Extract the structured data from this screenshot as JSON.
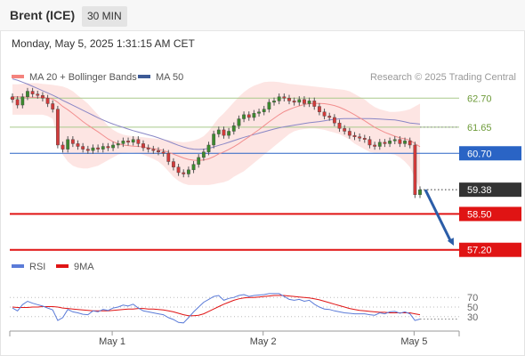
{
  "header": {
    "title": "Brent (ICE)",
    "timeframe": "30 MIN"
  },
  "datetime": "Monday, May 5, 2025 1:31:15 AM CET",
  "chart_data": [
    {
      "type": "candlestick",
      "legend": [
        {
          "name": "MA 20 + Bollinger Bands",
          "color": "#f4837d"
        },
        {
          "name": "MA 50",
          "color": "#3d5a96"
        }
      ],
      "source": "Research © 2025 Trading Central",
      "ylim": [
        56.9,
        64.0
      ],
      "x_labels": [
        {
          "label": "May 1",
          "index": 20
        },
        {
          "label": "May 2",
          "index": 50
        },
        {
          "label": "May 5",
          "index": 80
        }
      ],
      "levels": [
        {
          "value": 62.7,
          "label": "62.70",
          "kind": "resistance-light",
          "color": "#a9c98a"
        },
        {
          "value": 61.65,
          "label": "61.65",
          "kind": "resistance-light",
          "color": "#a9c98a"
        },
        {
          "value": 60.7,
          "label": "60.70",
          "kind": "pivot",
          "color": "#2a64c5"
        },
        {
          "value": 59.38,
          "label": "59.38",
          "kind": "last-price",
          "color": "#333333"
        },
        {
          "value": 58.5,
          "label": "58.50",
          "kind": "support",
          "color": "#e01414"
        },
        {
          "value": 57.2,
          "label": "57.20",
          "kind": "support",
          "color": "#e01414"
        }
      ],
      "close": [
        62.65,
        62.45,
        62.75,
        62.95,
        62.85,
        62.8,
        62.7,
        62.5,
        62.3,
        61.0,
        60.85,
        61.2,
        61.05,
        60.95,
        60.85,
        60.8,
        60.9,
        60.85,
        60.95,
        60.9,
        61.0,
        61.05,
        61.15,
        61.1,
        61.2,
        61.05,
        60.9,
        60.85,
        60.8,
        60.75,
        60.7,
        60.4,
        60.2,
        60.0,
        59.95,
        60.1,
        60.3,
        60.55,
        60.75,
        61.0,
        61.4,
        61.55,
        61.35,
        61.5,
        61.7,
        61.95,
        62.1,
        62.0,
        62.15,
        62.2,
        62.3,
        62.55,
        62.6,
        62.75,
        62.7,
        62.6,
        62.55,
        62.65,
        62.5,
        62.6,
        62.4,
        62.2,
        62.05,
        62.0,
        61.8,
        61.6,
        61.5,
        61.35,
        61.3,
        61.25,
        61.2,
        61.0,
        60.95,
        61.1,
        61.05,
        61.15,
        61.2,
        61.05,
        61.15,
        61.0,
        59.2,
        59.38
      ],
      "ma20": [
        62.75,
        62.75,
        62.74,
        62.74,
        62.73,
        62.73,
        62.73,
        62.71,
        62.67,
        62.55,
        62.4,
        62.28,
        62.14,
        62.0,
        61.85,
        61.72,
        61.6,
        61.48,
        61.35,
        61.22,
        61.12,
        61.05,
        61.0,
        60.98,
        60.96,
        60.95,
        60.93,
        60.9,
        60.87,
        60.84,
        60.8,
        60.74,
        60.67,
        60.6,
        60.53,
        60.48,
        60.45,
        60.44,
        60.46,
        60.5,
        60.58,
        60.68,
        60.75,
        60.84,
        60.94,
        61.05,
        61.18,
        61.3,
        61.43,
        61.56,
        61.7,
        61.84,
        61.97,
        62.1,
        62.21,
        62.29,
        62.36,
        62.42,
        62.47,
        62.5,
        62.51,
        62.51,
        62.5,
        62.47,
        62.43,
        62.37,
        62.29,
        62.2,
        62.1,
        61.99,
        61.88,
        61.76,
        61.64,
        61.55,
        61.46,
        61.39,
        61.32,
        61.26,
        61.22,
        61.18,
        61.05,
        60.94
      ],
      "ma50": [
        63.4,
        63.35,
        63.28,
        63.21,
        63.13,
        63.05,
        62.97,
        62.89,
        62.81,
        62.72,
        62.62,
        62.53,
        62.44,
        62.35,
        62.26,
        62.17,
        62.08,
        61.99,
        61.91,
        61.83,
        61.76,
        61.7,
        61.64,
        61.58,
        61.52,
        61.47,
        61.42,
        61.37,
        61.32,
        61.26,
        61.2,
        61.13,
        61.06,
        60.99,
        60.93,
        60.88,
        60.85,
        60.84,
        60.85,
        60.88,
        60.93,
        60.99,
        61.04,
        61.1,
        61.16,
        61.22,
        61.28,
        61.33,
        61.38,
        61.43,
        61.48,
        61.53,
        61.58,
        61.62,
        61.66,
        61.69,
        61.72,
        61.75,
        61.78,
        61.81,
        61.83,
        61.85,
        61.88,
        61.91,
        61.93,
        61.95,
        61.96,
        61.96,
        61.96,
        61.96,
        61.96,
        61.96,
        61.95,
        61.94,
        61.93,
        61.92,
        61.91,
        61.88,
        61.84,
        61.8,
        61.78,
        61.76
      ],
      "bb_upper": [
        63.2,
        63.2,
        63.22,
        63.24,
        63.24,
        63.24,
        63.22,
        63.2,
        63.18,
        63.15,
        63.12,
        63.05,
        62.95,
        62.8,
        62.65,
        62.5,
        62.3,
        62.1,
        61.9,
        61.7,
        61.55,
        61.45,
        61.38,
        61.34,
        61.32,
        61.3,
        61.28,
        61.26,
        61.24,
        61.22,
        61.2,
        61.18,
        61.15,
        61.12,
        61.1,
        61.12,
        61.16,
        61.22,
        61.32,
        61.5,
        61.75,
        61.98,
        62.15,
        62.35,
        62.55,
        62.75,
        62.92,
        63.05,
        63.15,
        63.22,
        63.28,
        63.3,
        63.3,
        63.28,
        63.25,
        63.22,
        63.2,
        63.18,
        63.16,
        63.14,
        63.12,
        63.1,
        63.08,
        63.06,
        63.04,
        63.02,
        63.0,
        62.95,
        62.85,
        62.75,
        62.65,
        62.5,
        62.38,
        62.3,
        62.25,
        62.2,
        62.2,
        62.22,
        62.25,
        62.3,
        62.4,
        62.5
      ],
      "bb_lower": [
        62.1,
        62.1,
        62.1,
        62.1,
        62.1,
        62.1,
        62.1,
        62.05,
        61.95,
        61.2,
        60.65,
        60.4,
        60.25,
        60.18,
        60.15,
        60.15,
        60.2,
        60.25,
        60.35,
        60.45,
        60.55,
        60.65,
        60.7,
        60.72,
        60.72,
        60.7,
        60.65,
        60.58,
        60.5,
        60.4,
        60.25,
        60.05,
        59.85,
        59.7,
        59.6,
        59.55,
        59.55,
        59.55,
        59.55,
        59.55,
        59.58,
        59.62,
        59.65,
        59.72,
        59.85,
        59.95,
        60.05,
        60.2,
        60.35,
        60.5,
        60.65,
        60.8,
        60.95,
        61.1,
        61.25,
        61.4,
        61.5,
        61.55,
        61.58,
        61.6,
        61.6,
        61.58,
        61.55,
        61.5,
        61.45,
        61.4,
        61.3,
        61.2,
        61.05,
        60.95,
        60.85,
        60.75,
        60.72,
        60.72,
        60.7,
        60.68,
        60.65,
        60.55,
        60.4,
        60.2,
        59.8,
        59.4
      ],
      "rsi": [
        48,
        42,
        55,
        62,
        58,
        55,
        52,
        48,
        44,
        22,
        28,
        45,
        40,
        38,
        35,
        34,
        42,
        40,
        45,
        43,
        48,
        50,
        54,
        52,
        56,
        48,
        42,
        40,
        38,
        36,
        34,
        28,
        24,
        18,
        17,
        28,
        40,
        50,
        60,
        66,
        72,
        74,
        64,
        68,
        70,
        74,
        76,
        72,
        74,
        75,
        76,
        78,
        78,
        78,
        72,
        66,
        64,
        66,
        62,
        64,
        56,
        50,
        46,
        45,
        42,
        40,
        38,
        37,
        36,
        36,
        36,
        34,
        33,
        38,
        36,
        40,
        41,
        37,
        40,
        36,
        22,
        25
      ],
      "rsi_ma": [
        50,
        49,
        49,
        49,
        50,
        50,
        51,
        51,
        51,
        50,
        48,
        47,
        46,
        45,
        44,
        43,
        42,
        42,
        42,
        42,
        43,
        44,
        45,
        46,
        46,
        47,
        47,
        46,
        46,
        45,
        44,
        42,
        40,
        37,
        34,
        32,
        32,
        33,
        36,
        41,
        46,
        51,
        56,
        60,
        64,
        67,
        69,
        70,
        70,
        71,
        72,
        73,
        74,
        74,
        74,
        73,
        72,
        71,
        70,
        69,
        67,
        65,
        62,
        59,
        56,
        53,
        50,
        47,
        45,
        43,
        42,
        41,
        40,
        39,
        39,
        38,
        38,
        38,
        38,
        38,
        36,
        34
      ],
      "rsi_legend": [
        {
          "name": "RSI",
          "color": "#5b7bd8"
        },
        {
          "name": "9MA",
          "color": "#e01414"
        }
      ],
      "rsi_levels": [
        {
          "value": 70,
          "label": "70"
        },
        {
          "value": 50,
          "label": "50"
        },
        {
          "value": 30,
          "label": "30"
        }
      ],
      "rsi_ylim": [
        0,
        100
      ]
    }
  ]
}
